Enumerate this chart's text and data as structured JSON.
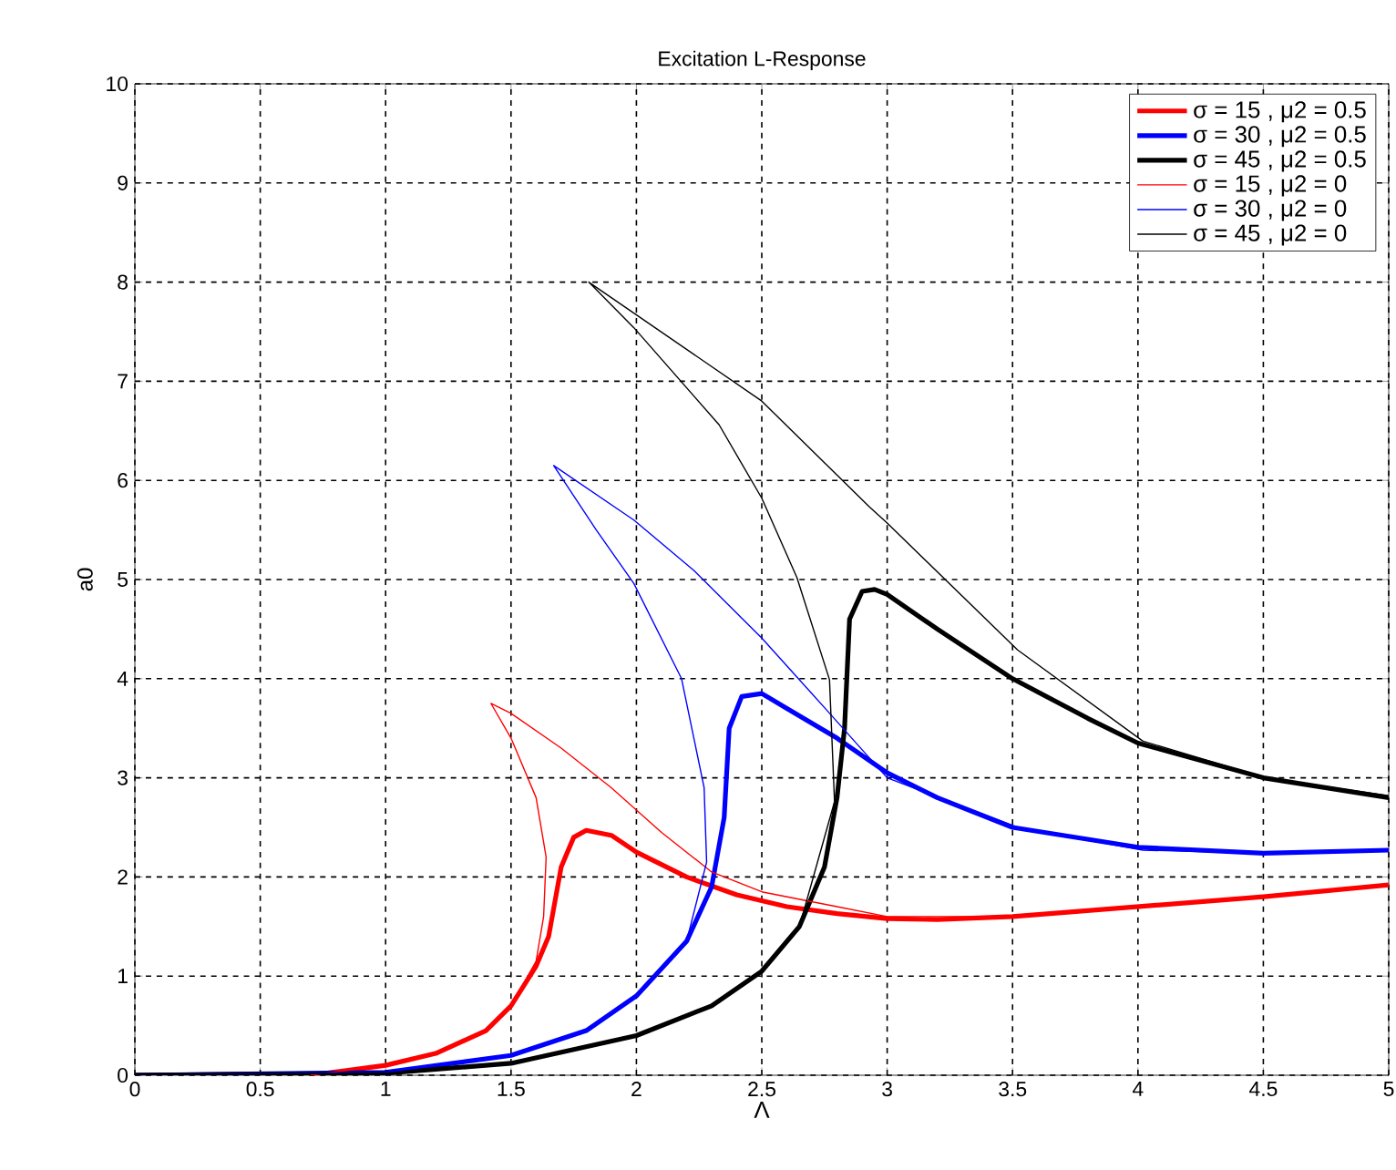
{
  "chart_data": {
    "type": "line",
    "title": "Excitation L-Response",
    "xlabel": "Λ",
    "ylabel": "a0",
    "xlim": [
      0,
      5
    ],
    "ylim": [
      0,
      10
    ],
    "xticks": [
      0,
      0.5,
      1,
      1.5,
      2,
      2.5,
      3,
      3.5,
      4,
      4.5,
      5
    ],
    "yticks": [
      0,
      1,
      2,
      3,
      4,
      5,
      6,
      7,
      8,
      9,
      10
    ],
    "grid": true,
    "legend": "top right",
    "marker": "none",
    "line_style": "solid",
    "series": [
      {
        "name": "σ = 15 , μ2 = 0.5",
        "color": "#ff0000",
        "x": [
          0,
          0.7,
          1.0,
          1.2,
          1.4,
          1.5,
          1.6,
          1.65,
          1.7,
          1.75,
          1.8,
          1.9,
          2.0,
          2.2,
          2.4,
          2.6,
          2.8,
          3.0,
          3.2,
          3.5,
          4.0,
          4.5,
          5.0
        ],
        "values": [
          0,
          0,
          0.1,
          0.22,
          0.45,
          0.7,
          1.1,
          1.4,
          2.1,
          2.4,
          2.47,
          2.42,
          2.25,
          2.0,
          1.82,
          1.7,
          1.63,
          1.58,
          1.57,
          1.6,
          1.7,
          1.8,
          1.92
        ]
      },
      {
        "name": "σ = 30 , μ2 = 0.5",
        "color": "#0000ff",
        "x": [
          0,
          1.0,
          1.5,
          1.8,
          2.0,
          2.2,
          2.3,
          2.35,
          2.37,
          2.42,
          2.5,
          2.6,
          2.8,
          3.0,
          3.2,
          3.5,
          4.0,
          4.5,
          5.0
        ],
        "values": [
          0,
          0.03,
          0.2,
          0.45,
          0.8,
          1.35,
          1.9,
          2.6,
          3.5,
          3.82,
          3.85,
          3.7,
          3.4,
          3.05,
          2.8,
          2.5,
          2.3,
          2.24,
          2.27
        ]
      },
      {
        "name": "σ = 45 , μ2 = 0.5",
        "color": "#000000",
        "x": [
          0,
          1.0,
          1.5,
          2.0,
          2.3,
          2.5,
          2.65,
          2.75,
          2.8,
          2.83,
          2.85,
          2.9,
          2.95,
          3.0,
          3.2,
          3.5,
          3.8,
          4.0,
          4.5,
          5.0
        ],
        "values": [
          0,
          0.02,
          0.12,
          0.4,
          0.7,
          1.05,
          1.5,
          2.1,
          2.8,
          3.5,
          4.6,
          4.88,
          4.9,
          4.85,
          4.5,
          4.0,
          3.6,
          3.35,
          3.0,
          2.8
        ]
      },
      {
        "name": "σ = 15 , μ2 = 0",
        "color": "#ff0000",
        "x": [
          0.7,
          1.0,
          1.2,
          1.4,
          1.5,
          1.6,
          1.63,
          1.64,
          1.6,
          1.5,
          1.42,
          1.5,
          1.7,
          1.9,
          2.1,
          2.3,
          2.5,
          2.8,
          3.0,
          3.5,
          4.0,
          4.5,
          5.0
        ],
        "values": [
          0,
          0.1,
          0.22,
          0.45,
          0.7,
          1.15,
          1.6,
          2.2,
          2.8,
          3.4,
          3.75,
          3.65,
          3.3,
          2.9,
          2.45,
          2.05,
          1.85,
          1.7,
          1.6,
          1.6,
          1.7,
          1.8,
          1.92
        ]
      },
      {
        "name": "σ = 30 , μ2 = 0",
        "color": "#0000ff",
        "x": [
          0,
          1.0,
          1.5,
          1.8,
          2.0,
          2.2,
          2.28,
          2.27,
          2.18,
          1.99,
          1.84,
          1.67,
          1.99,
          2.23,
          2.5,
          2.76,
          3.0,
          3.52,
          4.02,
          4.5,
          5.0
        ],
        "values": [
          0,
          0.03,
          0.2,
          0.45,
          0.8,
          1.35,
          2.15,
          2.9,
          4.0,
          4.96,
          5.5,
          6.15,
          5.6,
          5.09,
          4.41,
          3.68,
          3.0,
          2.5,
          2.27,
          2.24,
          2.27
        ]
      },
      {
        "name": "σ = 45 , μ2 = 0",
        "color": "#000000",
        "x": [
          0,
          1.0,
          1.5,
          2.0,
          2.3,
          2.5,
          2.65,
          2.79,
          2.77,
          2.64,
          2.5,
          2.33,
          1.99,
          1.81,
          2.5,
          2.93,
          3.0,
          3.52,
          4.02,
          4.51,
          5.0
        ],
        "values": [
          0,
          0.02,
          0.12,
          0.4,
          0.7,
          1.05,
          1.5,
          2.76,
          3.99,
          5.02,
          5.82,
          6.56,
          7.54,
          8.0,
          6.8,
          5.73,
          5.57,
          4.29,
          3.37,
          3.0,
          2.82
        ]
      }
    ]
  }
}
